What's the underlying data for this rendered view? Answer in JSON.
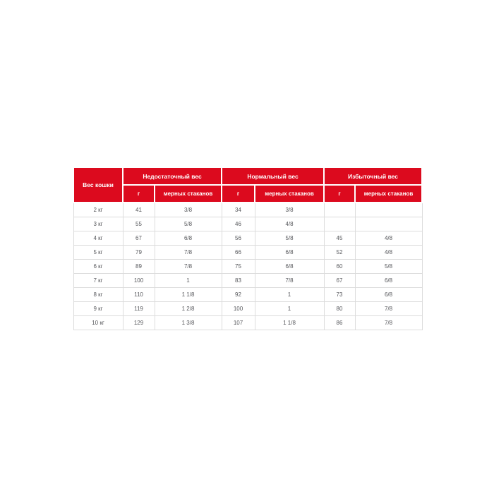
{
  "chart_data": {
    "type": "table",
    "corner_header": "Вес кошки",
    "column_groups": [
      {
        "label": "Недостаточный вес",
        "subcolumns": [
          "г",
          "мерных стаканов"
        ]
      },
      {
        "label": "Нормальный вес",
        "subcolumns": [
          "г",
          "мерных стаканов"
        ]
      },
      {
        "label": "Избыточный вес",
        "subcolumns": [
          "г",
          "мерных стаканов"
        ]
      }
    ],
    "rows": [
      [
        "2 кг",
        "41",
        "3/8",
        "34",
        "3/8",
        "",
        ""
      ],
      [
        "3 кг",
        "55",
        "5/8",
        "46",
        "4/8",
        "",
        ""
      ],
      [
        "4 кг",
        "67",
        "6/8",
        "56",
        "5/8",
        "45",
        "4/8"
      ],
      [
        "5 кг",
        "79",
        "7/8",
        "66",
        "6/8",
        "52",
        "4/8"
      ],
      [
        "6 кг",
        "89",
        "7/8",
        "75",
        "6/8",
        "60",
        "5/8"
      ],
      [
        "7 кг",
        "100",
        "1",
        "83",
        "7/8",
        "67",
        "6/8"
      ],
      [
        "8 кг",
        "110",
        "1 1/8",
        "92",
        "1",
        "73",
        "6/8"
      ],
      [
        "9 кг",
        "119",
        "1 2/8",
        "100",
        "1",
        "80",
        "7/8"
      ],
      [
        "10 кг",
        "129",
        "1 3/8",
        "107",
        "1 1/8",
        "86",
        "7/8"
      ]
    ]
  },
  "colors": {
    "header_background": "#dc0a1e",
    "header_text": "#ffffff",
    "body_text": "#56575b",
    "border": "#dcdcdc"
  }
}
